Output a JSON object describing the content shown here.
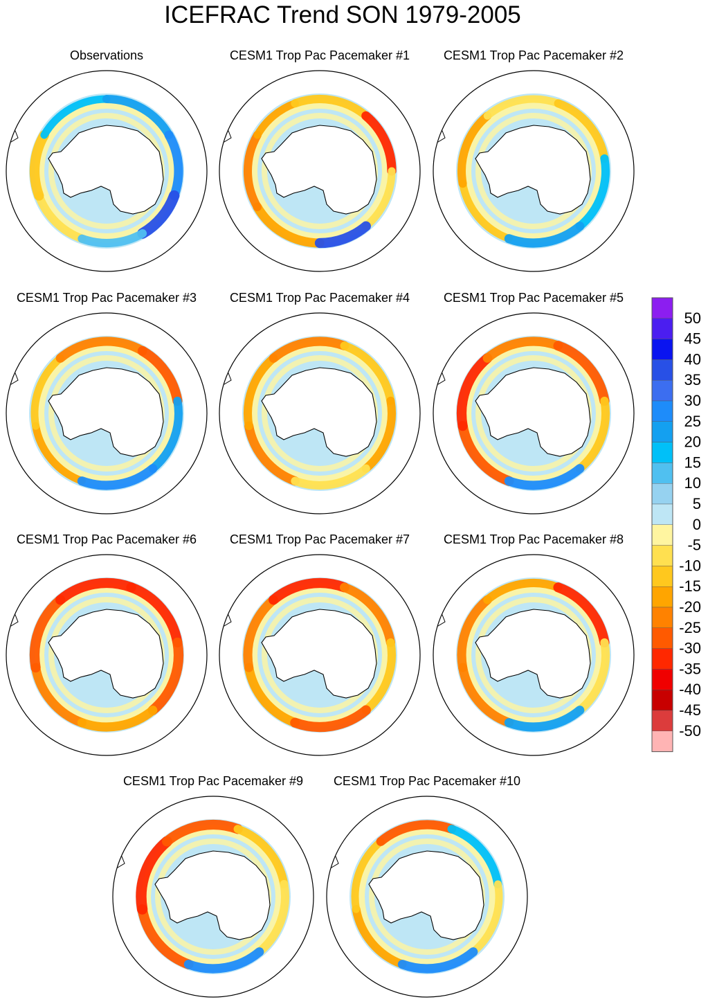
{
  "title": "ICEFRAC Trend SON 1979-2005",
  "panels": [
    {
      "label": "Observations",
      "pattern": "obs"
    },
    {
      "label": "CESM1 Trop Pac Pacemaker #1",
      "pattern": "m1"
    },
    {
      "label": "CESM1 Trop Pac Pacemaker #2",
      "pattern": "m2"
    },
    {
      "label": "CESM1 Trop Pac Pacemaker #3",
      "pattern": "m3"
    },
    {
      "label": "CESM1 Trop Pac Pacemaker #4",
      "pattern": "m4"
    },
    {
      "label": "CESM1 Trop Pac Pacemaker #5",
      "pattern": "m5"
    },
    {
      "label": "CESM1 Trop Pac Pacemaker #6",
      "pattern": "m6"
    },
    {
      "label": "CESM1 Trop Pac Pacemaker #7",
      "pattern": "m7"
    },
    {
      "label": "CESM1 Trop Pac Pacemaker #8",
      "pattern": "m8"
    },
    {
      "label": "CESM1 Trop Pac Pacemaker #9",
      "pattern": "m9"
    },
    {
      "label": "CESM1 Trop Pac Pacemaker #10",
      "pattern": "m10"
    }
  ],
  "colorbar": {
    "labels": [
      "50",
      "45",
      "40",
      "35",
      "30",
      "25",
      "20",
      "15",
      "10",
      "5",
      "0",
      "-5",
      "-10",
      "-15",
      "-20",
      "-25",
      "-30",
      "-35",
      "-40",
      "-45",
      "-50"
    ],
    "colors": [
      "#8C1EF0",
      "#4B1EF0",
      "#0A14F0",
      "#2850E6",
      "#3C6EF0",
      "#1E8CFA",
      "#14A0F0",
      "#00C0F8",
      "#50C0F0",
      "#96D2F0",
      "#BEE6F5",
      "#FFF5A0",
      "#FFE050",
      "#FFC81E",
      "#FFA500",
      "#FF8200",
      "#FF5A00",
      "#FF2800",
      "#F00000",
      "#C80000",
      "#DC3C3C",
      "#FFB4B4"
    ]
  }
}
